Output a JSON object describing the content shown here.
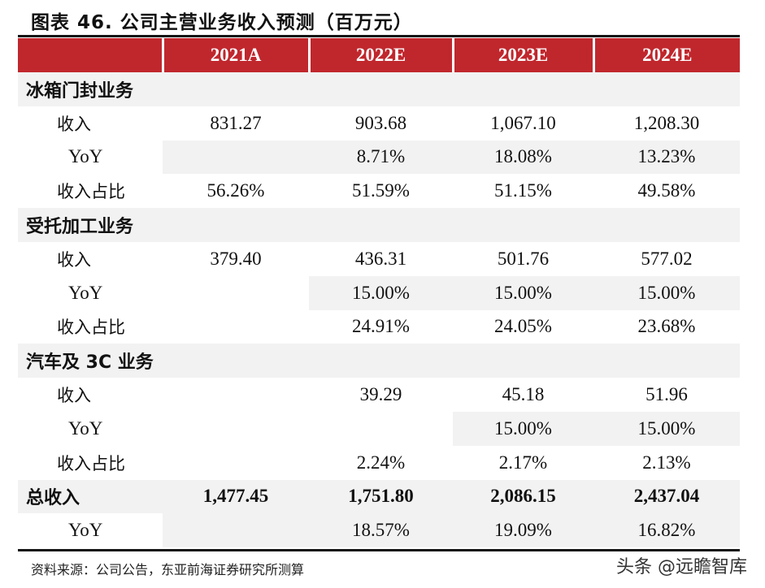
{
  "title": "图表 46. 公司主营业务收入预测（百万元）",
  "columns": [
    "",
    "2021A",
    "2022E",
    "2023E",
    "2024E"
  ],
  "sections": [
    {
      "name": "冰箱门封业务",
      "rows": [
        {
          "label": "收入",
          "values": [
            "831.27",
            "903.68",
            "1,067.10",
            "1,208.30"
          ]
        },
        {
          "label": "YoY",
          "values": [
            "",
            "8.71%",
            "18.08%",
            "13.23%"
          ]
        },
        {
          "label": "收入占比",
          "values": [
            "56.26%",
            "51.59%",
            "51.15%",
            "49.58%"
          ]
        }
      ]
    },
    {
      "name": "受托加工业务",
      "rows": [
        {
          "label": "收入",
          "values": [
            "379.40",
            "436.31",
            "501.76",
            "577.02"
          ]
        },
        {
          "label": "YoY",
          "values": [
            "",
            "15.00%",
            "15.00%",
            "15.00%"
          ]
        },
        {
          "label": "收入占比",
          "values": [
            "",
            "24.91%",
            "24.05%",
            "23.68%"
          ]
        }
      ]
    },
    {
      "name": "汽车及 3C 业务",
      "rows": [
        {
          "label": "收入",
          "values": [
            "",
            "39.29",
            "45.18",
            "51.96"
          ]
        },
        {
          "label": "YoY",
          "values": [
            "",
            "",
            "15.00%",
            "15.00%"
          ]
        },
        {
          "label": "收入占比",
          "values": [
            "",
            "2.24%",
            "2.17%",
            "2.13%"
          ]
        }
      ]
    }
  ],
  "total": {
    "label": "总收入",
    "values": [
      "1,477.45",
      "1,751.80",
      "2,086.15",
      "2,437.04"
    ]
  },
  "total_yoy": {
    "label": "YoY",
    "values": [
      "",
      "18.57%",
      "19.09%",
      "16.82%"
    ]
  },
  "source": "资料来源：公司公告，东亚前海证券研究所测算",
  "watermark": "头条 @远瞻智库",
  "colors": {
    "header": "#c0272d",
    "shade": "#f2f2f2"
  }
}
